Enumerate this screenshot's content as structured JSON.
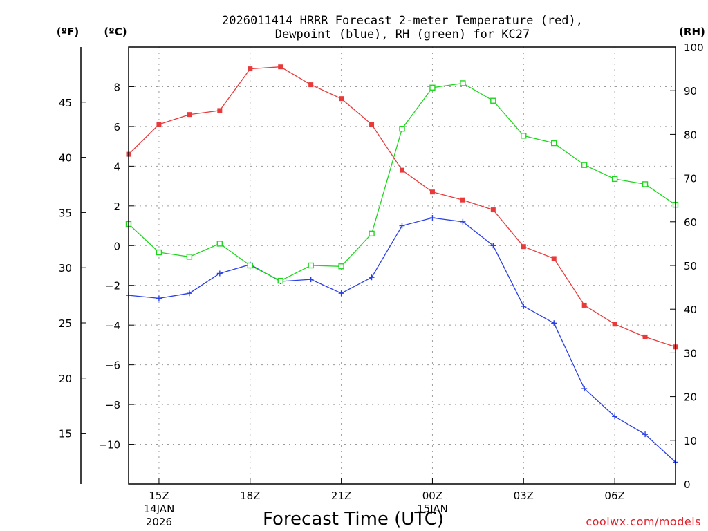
{
  "chart_data": {
    "type": "line",
    "title_line1": "2026011414 HRRR Forecast 2-meter Temperature (red),",
    "title_line2": "Dewpoint (blue), RH (green) for KC27",
    "xlabel": "Forecast Time (UTC)",
    "credit": "coolwx.com/models",
    "units": {
      "fahrenheit": "(ºF)",
      "celsius": "(ºC)",
      "rh": "(RH)"
    },
    "hours": [
      14,
      15,
      16,
      17,
      18,
      19,
      20,
      21,
      22,
      23,
      24,
      25,
      26,
      27,
      28,
      29,
      30,
      31,
      32
    ],
    "x_ticks": [
      {
        "hour": 15,
        "label": "15Z",
        "date_line1": "14JAN",
        "date_line2": "2026"
      },
      {
        "hour": 18,
        "label": "18Z",
        "date_line1": "",
        "date_line2": ""
      },
      {
        "hour": 21,
        "label": "21Z",
        "date_line1": "",
        "date_line2": ""
      },
      {
        "hour": 24,
        "label": "00Z",
        "date_line1": "15JAN",
        "date_line2": ""
      },
      {
        "hour": 27,
        "label": "03Z",
        "date_line1": "",
        "date_line2": ""
      },
      {
        "hour": 30,
        "label": "06Z",
        "date_line1": "",
        "date_line2": ""
      }
    ],
    "celsius_axis": {
      "range": [
        -12,
        10
      ],
      "ticks": [
        8,
        6,
        4,
        2,
        0,
        -2,
        -4,
        -6,
        -8,
        -10
      ],
      "tick_labels": [
        "8",
        "6",
        "4",
        "2",
        "0",
        "−2",
        "−4",
        "−6",
        "−8",
        "−10"
      ]
    },
    "fahrenheit_axis": {
      "ticks": [
        45,
        40,
        35,
        30,
        25,
        20,
        15
      ],
      "tick_labels": [
        "45",
        "40",
        "35",
        "30",
        "25",
        "20",
        "15"
      ]
    },
    "rh_axis": {
      "range": [
        0,
        100
      ],
      "ticks": [
        100,
        90,
        80,
        70,
        60,
        50,
        40,
        30,
        20,
        10,
        0
      ],
      "tick_labels": [
        "100",
        "90",
        "80",
        "70",
        "60",
        "50",
        "40",
        "30",
        "20",
        "10",
        "0"
      ]
    },
    "series": [
      {
        "name": "Temperature",
        "unit": "C",
        "color": "#e83a3a",
        "marker": "filled-square",
        "values": [
          4.6,
          6.1,
          6.6,
          6.8,
          8.9,
          9.0,
          8.1,
          7.4,
          6.1,
          3.8,
          2.7,
          2.3,
          1.8,
          -0.05,
          -0.65,
          -3.0,
          -3.95,
          -4.6,
          -5.1
        ]
      },
      {
        "name": "Dewpoint",
        "unit": "C",
        "color": "#2a3fe6",
        "marker": "plus",
        "values": [
          -2.5,
          -2.65,
          -2.4,
          -1.4,
          -0.95,
          -1.8,
          -1.7,
          -2.4,
          -1.6,
          1.0,
          1.4,
          1.2,
          0.0,
          -3.05,
          -3.9,
          -7.2,
          -8.6,
          -9.5,
          -10.9
        ]
      },
      {
        "name": "RH",
        "unit": "%",
        "color": "#1ed61e",
        "marker": "open-square",
        "values": [
          59.5,
          53.0,
          52.0,
          55.0,
          50.0,
          46.5,
          50.0,
          49.8,
          57.3,
          81.3,
          90.7,
          91.7,
          87.7,
          79.7,
          78.0,
          73.0,
          69.8,
          68.6,
          63.9
        ]
      }
    ]
  }
}
